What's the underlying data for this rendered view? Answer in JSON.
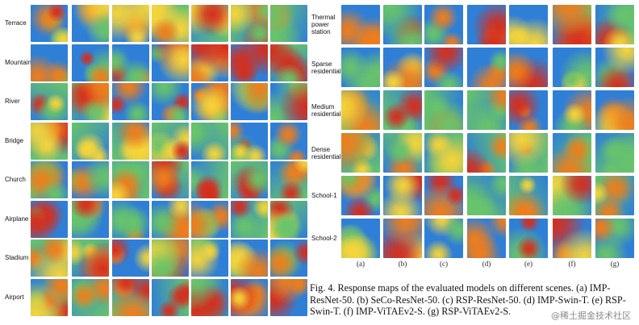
{
  "left_rows": [
    "Terrace",
    "Mountain",
    "River",
    "Bridge",
    "Church",
    "Airplane",
    "Stadium",
    "Airport"
  ],
  "right_rows": [
    [
      "Thermal",
      "power",
      "station"
    ],
    [
      "Sparse",
      "residential"
    ],
    [
      "Medium",
      "residential"
    ],
    [
      "Dense",
      "residential"
    ],
    [
      "School-1"
    ],
    [
      "School-2"
    ]
  ],
  "columns": [
    "(a)",
    "(b)",
    "(c)",
    "(d)",
    "(e)",
    "(f)",
    "(g)"
  ],
  "caption": "Fig. 4.  Response maps of the evaluated models on different scenes. (a) IMP-ResNet-50. (b) SeCo-ResNet-50. (c) RSP-ResNet-50. (d) IMP-Swin-T. (e) RSP-Swin-T. (f) IMP-ViTAEv2-S. (g) RSP-ViTAEv2-S.",
  "watermark": "@稀土掘金技术社区"
}
